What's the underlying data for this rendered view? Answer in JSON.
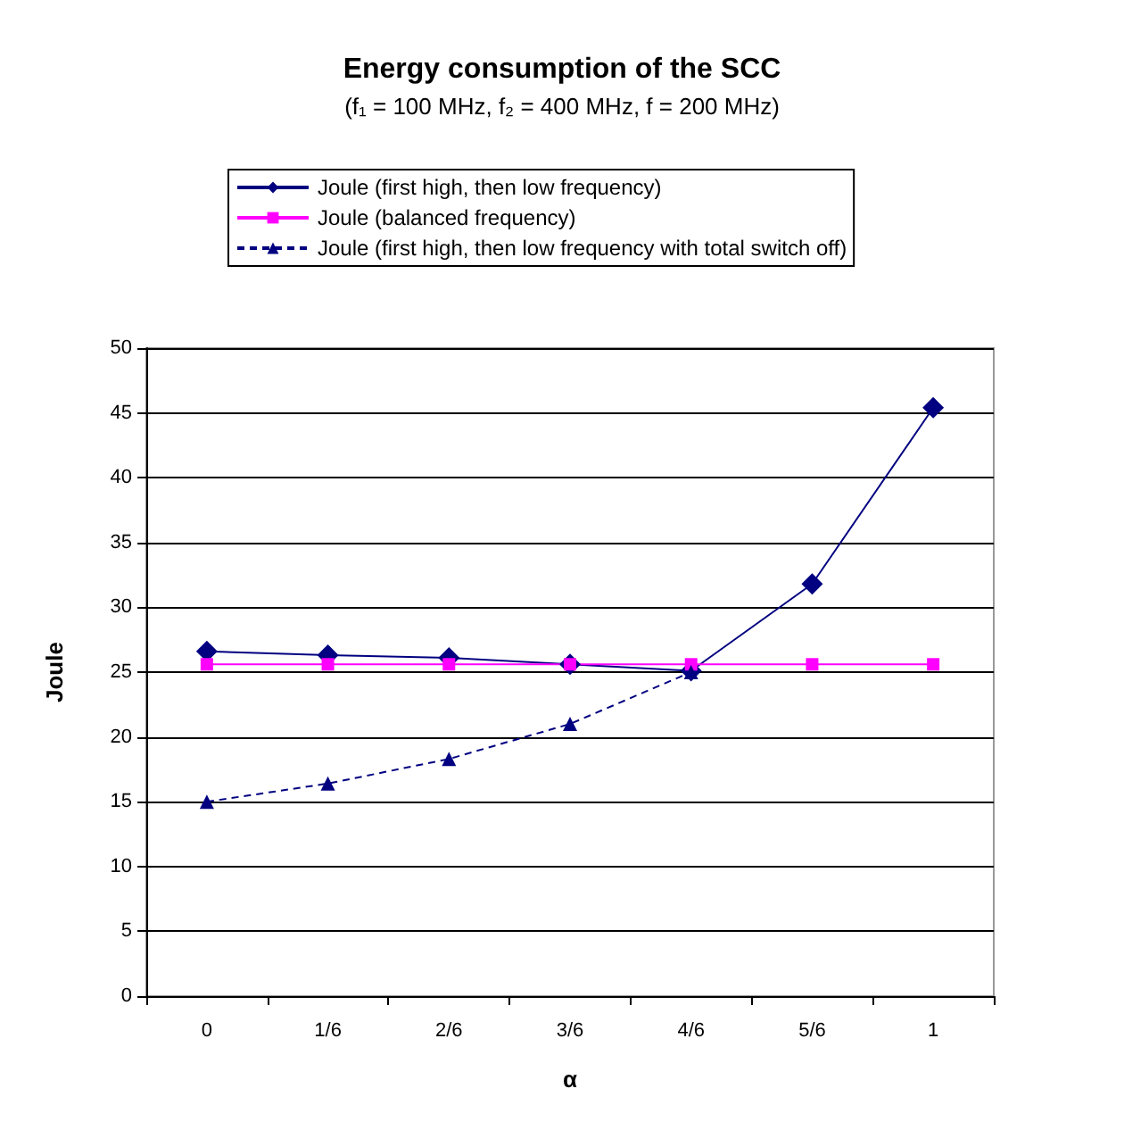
{
  "chart_data": {
    "type": "line",
    "title": "Energy consumption of the SCC",
    "subtitle": "(f₁ = 100 MHz, f₂ = 400 MHz, f = 200 MHz)",
    "xlabel": "α",
    "ylabel": "Joule",
    "categories": [
      "0",
      "1/6",
      "2/6",
      "3/6",
      "4/6",
      "5/6",
      "1"
    ],
    "series": [
      {
        "name": "Joule (first high, then low frequency)",
        "color": "#000080",
        "marker": "diamond",
        "line_style": "solid",
        "values": [
          26.6,
          26.3,
          26.1,
          25.6,
          25.1,
          31.8,
          45.4
        ]
      },
      {
        "name": "Joule (balanced frequency)",
        "color": "#ff00ff",
        "marker": "square",
        "line_style": "solid",
        "values": [
          25.6,
          25.6,
          25.6,
          25.6,
          25.6,
          25.6,
          25.6
        ]
      },
      {
        "name": "Joule (first high, then low frequency with total switch off)",
        "color": "#000080",
        "marker": "triangle",
        "line_style": "dashed",
        "values": [
          15.0,
          16.4,
          18.3,
          21.0,
          25.0,
          null,
          null
        ]
      }
    ],
    "ylim": [
      0,
      50
    ],
    "yticks": [
      0,
      5,
      10,
      15,
      20,
      25,
      30,
      35,
      40,
      45,
      50
    ],
    "grid": "y",
    "legend": "top"
  }
}
